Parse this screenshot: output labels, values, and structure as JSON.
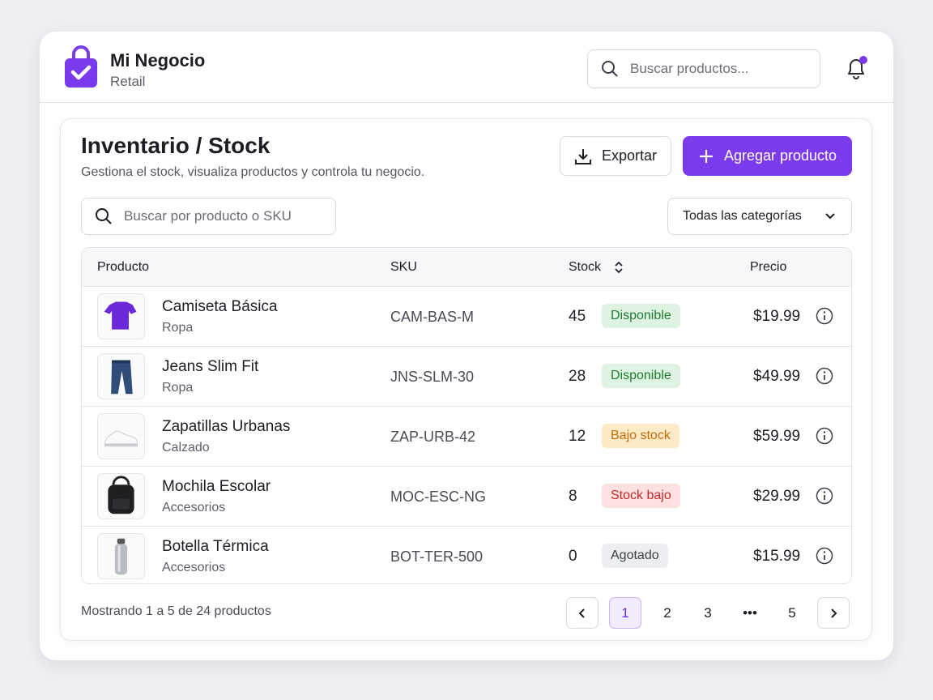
{
  "header": {
    "brand": "Mi Negocio",
    "subtitle": "Retail",
    "search_placeholder": "Buscar productos..."
  },
  "page": {
    "title": "Inventario / Stock",
    "description": "Gestiona el stock, visualiza productos y controla tu negocio.",
    "export": "Exportar",
    "add": "Agregar producto",
    "search_placeholder": "Buscar por producto o SKU",
    "category_filter": "Todas las categorías"
  },
  "table": {
    "columns": [
      "Producto",
      "SKU",
      "Stock",
      "Precio"
    ],
    "rows": [
      {
        "name": "Camiseta Básica",
        "category": "Ropa",
        "sku": "CAM-BAS-M",
        "stock": 45,
        "status": "Disponible",
        "status_tone": "success",
        "price": "$19.99"
      },
      {
        "name": "Jeans Slim Fit",
        "category": "Ropa",
        "sku": "JNS-SLM-30",
        "stock": 28,
        "status": "Disponible",
        "status_tone": "success",
        "price": "$49.99"
      },
      {
        "name": "Zapatillas Urbanas",
        "category": "Calzado",
        "sku": "ZAP-URB-42",
        "stock": 12,
        "status": "Bajo stock",
        "status_tone": "warning",
        "price": "$59.99"
      },
      {
        "name": "Mochila Escolar",
        "category": "Accesorios",
        "sku": "MOC-ESC-NG",
        "stock": 8,
        "status": "Stock bajo",
        "status_tone": "danger",
        "price": "$29.99"
      },
      {
        "name": "Botella Térmica",
        "category": "Accesorios",
        "sku": "BOT-TER-500",
        "stock": 0,
        "status": "Agotado",
        "status_tone": "neutral",
        "price": "$15.99"
      }
    ]
  },
  "pagination": {
    "summary": "Mostrando 1 a 5 de 24 productos",
    "pages": [
      "1",
      "2",
      "3",
      "•••",
      "5"
    ],
    "current": 0
  }
}
